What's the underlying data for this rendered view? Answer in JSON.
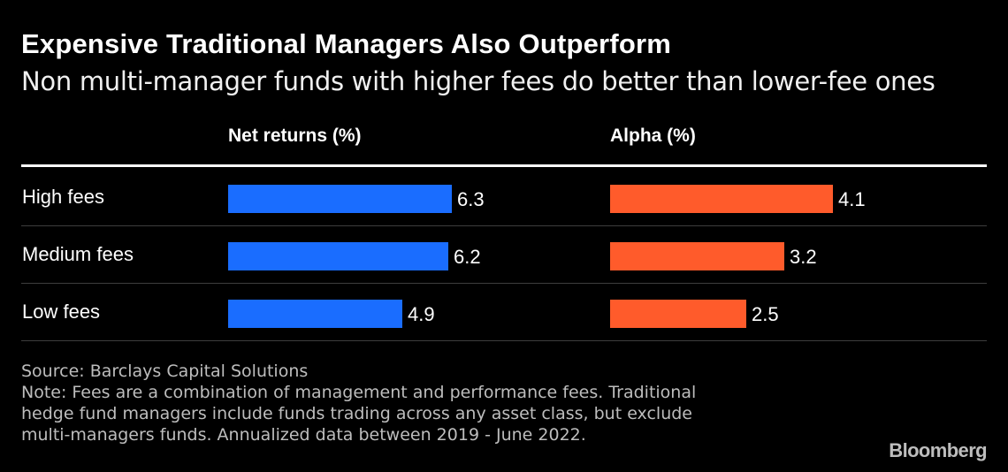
{
  "title": "Expensive Traditional Managers Also Outperform",
  "subtitle": "Non multi-manager funds with higher fees do better than lower-fee ones",
  "footer": {
    "source": "Source: Barclays Capital Solutions",
    "note_lines": [
      "Note: Fees are a combination of management and performance fees. Traditional",
      "hedge fund managers include funds trading across any asset class, but exclude",
      "multi-managers funds. Annualized data between 2019 - June 2022."
    ]
  },
  "logo": "Bloomberg",
  "colors": {
    "net_returns": "#1a6dff",
    "alpha": "#ff5b2b",
    "background": "#000000"
  },
  "chart_data": {
    "type": "bar",
    "orientation": "horizontal",
    "categories": [
      "High fees",
      "Medium fees",
      "Low fees"
    ],
    "series": [
      {
        "name": "Net returns (%)",
        "values": [
          6.3,
          6.2,
          4.9
        ]
      },
      {
        "name": "Alpha (%)",
        "values": [
          4.1,
          3.2,
          2.5
        ]
      }
    ],
    "title": "Expensive Traditional Managers Also Outperform",
    "subtitle": "Non multi-manager funds with higher fees do better than lower-fee ones",
    "data_labels": true,
    "grid": false
  }
}
